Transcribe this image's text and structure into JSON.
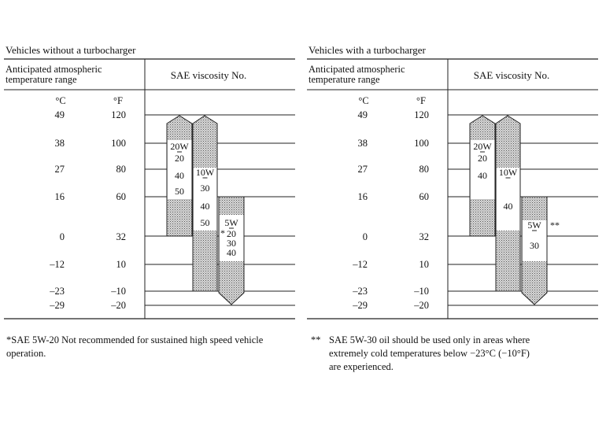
{
  "panels": [
    {
      "title": "Vehicles without a turbocharger",
      "header_left": [
        "Anticipated atmospheric",
        "temperature range"
      ],
      "header_right": "SAE viscosity No.",
      "unit_c": "°C",
      "unit_f": "°F",
      "rows": [
        {
          "c": "49",
          "f": "120"
        },
        {
          "c": "38",
          "f": "100"
        },
        {
          "c": "27",
          "f": "80"
        },
        {
          "c": "16",
          "f": "60"
        },
        {
          "c": "0",
          "f": "32"
        },
        {
          "c": "–12",
          "f": "10"
        },
        {
          "c": "–23",
          "f": "–10"
        },
        {
          "c": "–29",
          "f": "–20"
        }
      ],
      "bars": [
        {
          "grade": "20W",
          "labels": [
            "20",
            "40",
            "50"
          ]
        },
        {
          "grade": "10W",
          "labels": [
            "30",
            "40",
            "50"
          ]
        },
        {
          "grade": "5W",
          "labels": [
            "20",
            "30",
            "40"
          ],
          "mark": "*"
        }
      ]
    },
    {
      "title": "Vehicles with a turbocharger",
      "header_left": [
        "Anticipated atmospheric",
        "temperature range"
      ],
      "header_right": "SAE viscosity No.",
      "unit_c": "°C",
      "unit_f": "°F",
      "rows": [
        {
          "c": "49",
          "f": "120"
        },
        {
          "c": "38",
          "f": "100"
        },
        {
          "c": "27",
          "f": "80"
        },
        {
          "c": "16",
          "f": "60"
        },
        {
          "c": "0",
          "f": "32"
        },
        {
          "c": "–12",
          "f": "10"
        },
        {
          "c": "–23",
          "f": "–10"
        },
        {
          "c": "–29",
          "f": "–20"
        }
      ],
      "bars": [
        {
          "grade": "20W",
          "labels": [
            "20",
            "40"
          ]
        },
        {
          "grade": "10W",
          "labels": [
            "40"
          ]
        },
        {
          "grade": "5W",
          "labels": [
            "30"
          ],
          "mark": "**"
        }
      ]
    }
  ],
  "footnotes": {
    "left": [
      "*SAE 5W-20 Not recommended for sustained high speed vehicle",
      "operation."
    ],
    "right_mark": "**",
    "right": [
      "SAE 5W-30 oil should be used only in areas where",
      "extremely cold temperatures below −23°C (−10°F)",
      "are experienced."
    ]
  }
}
